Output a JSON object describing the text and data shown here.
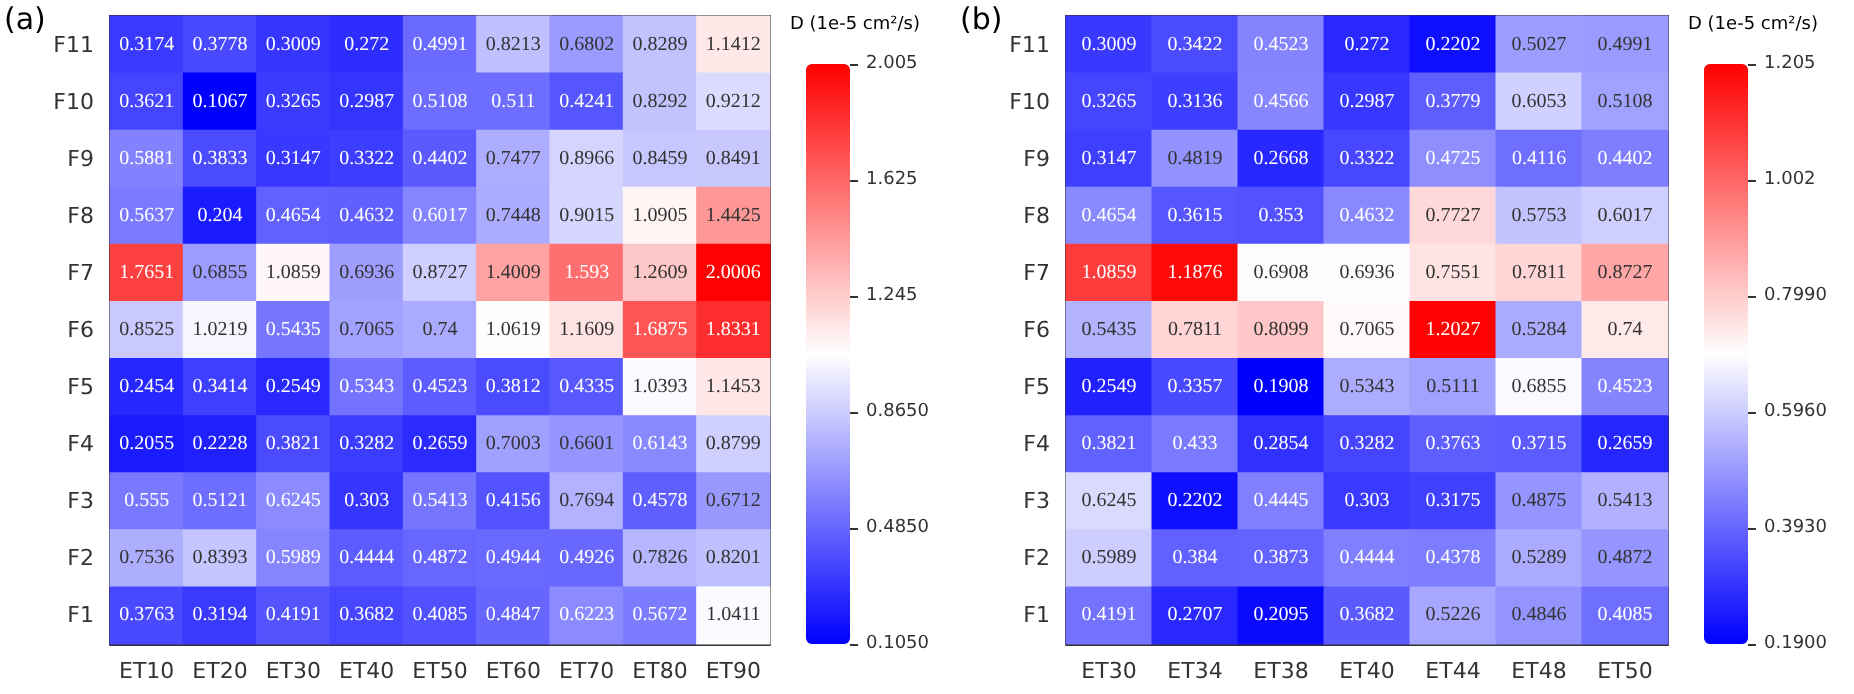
{
  "chart_data": [
    {
      "type": "heatmap",
      "annotations": [
        "(a)"
      ],
      "clabel": "D (1e-5 cm²/s)",
      "data_labels": true,
      "categories": [
        "ET10",
        "ET20",
        "ET30",
        "ET40",
        "ET50",
        "ET60",
        "ET70",
        "ET80",
        "ET90"
      ],
      "y_categories": [
        "F11",
        "F10",
        "F9",
        "F8",
        "F7",
        "F6",
        "F5",
        "F4",
        "F3",
        "F2",
        "F1"
      ],
      "cells": [
        [
          0.3174,
          0.3778,
          0.3009,
          0.272,
          0.4991,
          0.8213,
          0.6802,
          0.8289,
          1.1412
        ],
        [
          0.3621,
          0.1067,
          0.3265,
          0.2987,
          0.5108,
          0.511,
          0.4241,
          0.8292,
          0.9212
        ],
        [
          0.5881,
          0.3833,
          0.3147,
          0.3322,
          0.4402,
          0.7477,
          0.8966,
          0.8459,
          0.8491
        ],
        [
          0.5637,
          0.204,
          0.4654,
          0.4632,
          0.6017,
          0.7448,
          0.9015,
          1.0905,
          1.4425
        ],
        [
          1.7651,
          0.6855,
          1.0859,
          0.6936,
          0.8727,
          1.4009,
          1.593,
          1.2609,
          2.0006
        ],
        [
          0.8525,
          1.0219,
          0.5435,
          0.7065,
          0.74,
          1.0619,
          1.1609,
          1.6875,
          1.8331
        ],
        [
          0.2454,
          0.3414,
          0.2549,
          0.5343,
          0.4523,
          0.3812,
          0.4335,
          1.0393,
          1.1453
        ],
        [
          0.2055,
          0.2228,
          0.3821,
          0.3282,
          0.2659,
          0.7003,
          0.6601,
          0.6143,
          0.8799
        ],
        [
          0.555,
          0.5121,
          0.6245,
          0.303,
          0.5413,
          0.4156,
          0.7694,
          0.4578,
          0.6712
        ],
        [
          0.7536,
          0.8393,
          0.5989,
          0.4444,
          0.4872,
          0.4944,
          0.4926,
          0.7826,
          0.8201
        ],
        [
          0.3763,
          0.3194,
          0.4191,
          0.3682,
          0.4085,
          0.4847,
          0.6223,
          0.5672,
          1.0411
        ]
      ],
      "clim": [
        0.105,
        2.005
      ],
      "cticks": [
        {
          "value": 0.105,
          "label": "0.1050"
        },
        {
          "value": 0.485,
          "label": "0.4850"
        },
        {
          "value": 0.865,
          "label": "0.8650"
        },
        1.245,
        1.625,
        2.005
      ]
    },
    {
      "type": "heatmap",
      "annotations": [
        "(b)"
      ],
      "clabel": "D (1e-5 cm²/s)",
      "data_labels": true,
      "categories": [
        "ET30",
        "ET34",
        "ET38",
        "ET40",
        "ET44",
        "ET48",
        "ET50"
      ],
      "y_categories": [
        "F11",
        "F10",
        "F9",
        "F8",
        "F7",
        "F6",
        "F5",
        "F4",
        "F3",
        "F2",
        "F1"
      ],
      "cells": [
        [
          0.3009,
          0.3422,
          0.4523,
          0.272,
          0.2202,
          0.5027,
          0.4991
        ],
        [
          0.3265,
          0.3136,
          0.4566,
          0.2987,
          0.3779,
          0.6053,
          0.5108
        ],
        [
          0.3147,
          0.4819,
          0.2668,
          0.3322,
          0.4725,
          0.4116,
          0.4402
        ],
        [
          0.4654,
          0.3615,
          0.353,
          0.4632,
          0.7727,
          0.5753,
          0.6017
        ],
        [
          1.0859,
          1.1876,
          0.6908,
          0.6936,
          0.7551,
          0.7811,
          0.8727
        ],
        [
          0.5435,
          0.7811,
          0.8099,
          0.7065,
          1.2027,
          0.5284,
          0.74
        ],
        [
          0.2549,
          0.3357,
          0.1908,
          0.5343,
          0.5111,
          0.6855,
          0.4523
        ],
        [
          0.3821,
          0.433,
          0.2854,
          0.3282,
          0.3763,
          0.3715,
          0.2659
        ],
        [
          0.6245,
          0.2202,
          0.4445,
          0.303,
          0.3175,
          0.4875,
          0.5413
        ],
        [
          0.5989,
          0.384,
          0.3873,
          0.4444,
          0.4378,
          0.5289,
          0.4872
        ],
        [
          0.4191,
          0.2707,
          0.2095,
          0.3682,
          0.5226,
          0.4846,
          0.4085
        ]
      ],
      "clim": [
        0.19,
        1.205
      ],
      "cticks": [
        {
          "value": 0.19,
          "label": "0.1900"
        },
        {
          "value": 0.393,
          "label": "0.3930"
        },
        {
          "value": 0.596,
          "label": "0.5960"
        },
        {
          "value": 0.799,
          "label": "0.7990"
        },
        1.002,
        1.205
      ]
    }
  ]
}
